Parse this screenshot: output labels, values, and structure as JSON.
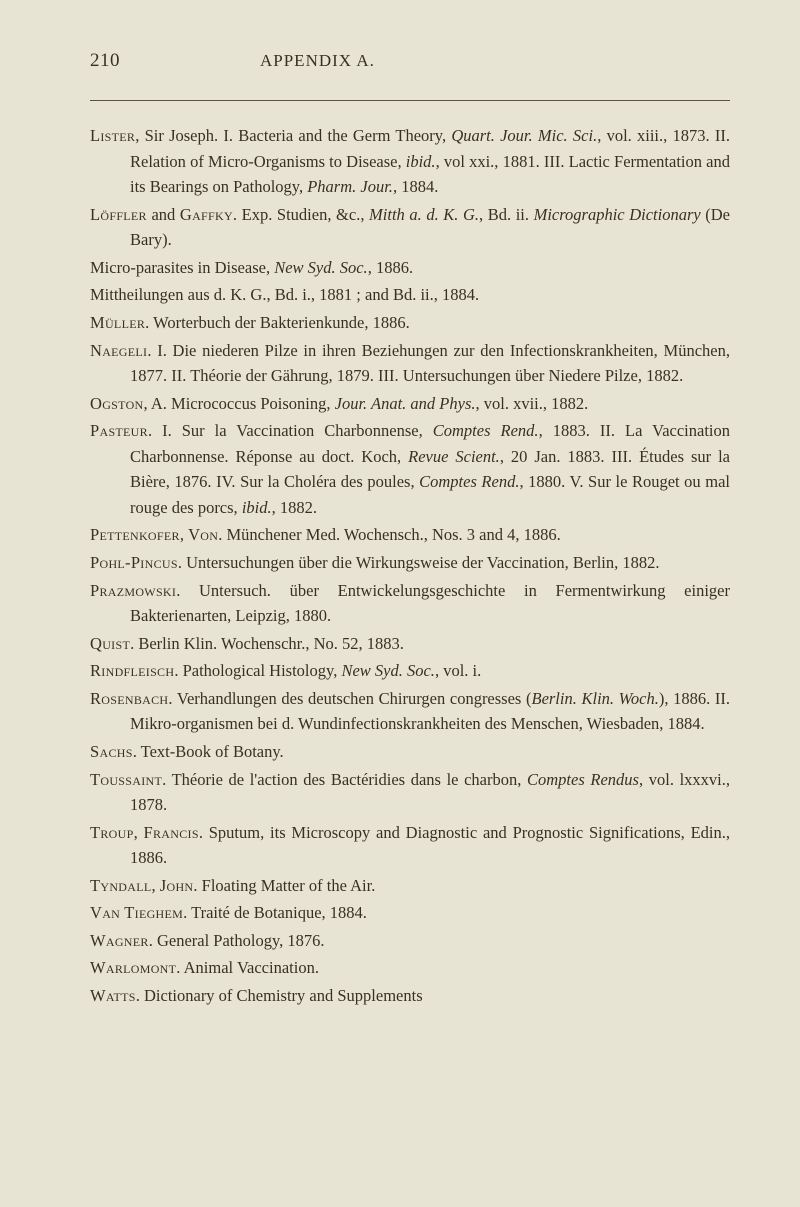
{
  "page_number": "210",
  "header_title": "APPENDIX A.",
  "entries": [
    {
      "author": "Lister",
      "rest": ", Sir Joseph.  I. Bacteria and the Germ Theory, <i>Quart. Jour. Mic. Sci.</i>, vol. xiii., 1873.  II. Relation of Micro-Organisms to Disease, <i>ibid.</i>, vol xxi., 1881.  III. Lactic Fermentation and its Bearings on Pathology, <i>Pharm. Jour.</i>, 1884."
    },
    {
      "author": "Löffler",
      "rest": " and <span class='sc'>Gaffky</span>.  Exp. Studien, &c., <i>Mitth a. d. K. G.</i>, Bd. ii. <i>Micrographic Dictionary</i> (De Bary)."
    },
    {
      "author": "",
      "rest": "Micro-parasites in Disease, <i>New Syd. Soc.</i>, 1886."
    },
    {
      "author": "",
      "rest": "Mittheilungen aus d. K. G., Bd. i., 1881 ; and Bd. ii., 1884."
    },
    {
      "author": "Müller",
      "rest": ".  Worterbuch der Bakterienkunde, 1886."
    },
    {
      "author": "Naegeli",
      "rest": ".  I. Die niederen Pilze in ihren Beziehungen zur den Infectionskrankheiten, München, 1877.  II. Théorie der Gährung, 1879.  III. Untersuchungen über Niedere Pilze, 1882."
    },
    {
      "author": "Ogston",
      "rest": ", A.  Micrococcus Poisoning, <i>Jour. Anat. and Phys.</i>, vol. xvii., 1882."
    },
    {
      "author": "Pasteur",
      "rest": ".  I. Sur la Vaccination Charbonnense, <i>Comptes Rend.</i>, 1883.  II. La Vaccination Charbonnense.  Réponse au doct. Koch, <i>Revue Scient.</i>, 20 Jan. 1883.  III. Études sur la Bière, 1876.  IV. Sur la Choléra des poules, <i>Comptes Rend.</i>, 1880.  V. Sur le Rouget ou mal rouge des porcs, <i>ibid.</i>, 1882."
    },
    {
      "author": "Pettenkofer",
      "rest": ", <span class='sc'>Von</span>.  Münchener Med. Wochensch., Nos. 3 and 4, 1886."
    },
    {
      "author": "Pohl-Pincus",
      "rest": ".  Untersuchungen über die Wirkungsweise der Vaccination, Berlin, 1882."
    },
    {
      "author": "Prazmowski",
      "rest": ".  Untersuch. über Entwickelungsgeschichte in Fermentwirkung einiger Bakterienarten, Leipzig, 1880."
    },
    {
      "author": "Quist",
      "rest": ".  Berlin Klin. Wochenschr., No. 52, 1883."
    },
    {
      "author": "Rindfleisch",
      "rest": ".  Pathological Histology, <i>New Syd. Soc.</i>, vol. i."
    },
    {
      "author": "Rosenbach",
      "rest": ".  Verhandlungen des deutschen Chirurgen congresses (<i>Berlin. Klin. Woch.</i>), 1886.  II. Mikro-organismen bei d. Wundinfectionskrankheiten des Menschen, Wiesbaden, 1884."
    },
    {
      "author": "Sachs",
      "rest": ".  Text-Book of Botany."
    },
    {
      "author": "Toussaint",
      "rest": ".  Théorie de l'action des Bactéridies dans le charbon, <i>Comptes Rendus</i>, vol. lxxxvi., 1878."
    },
    {
      "author": "Troup",
      "rest": ", <span class='sc'>Francis</span>.  Sputum, its Microscopy and Diagnostic and Prognostic Significations, Edin., 1886."
    },
    {
      "author": "Tyndall",
      "rest": ", <span class='sc'>John</span>.  Floating Matter of the Air."
    },
    {
      "author": "Van Tieghem",
      "rest": ".  Traité de Botanique, 1884."
    },
    {
      "author": "Wagner",
      "rest": ".  General Pathology, 1876."
    },
    {
      "author": "Warlomont",
      "rest": ".  Animal Vaccination."
    },
    {
      "author": "Watts",
      "rest": ".  Dictionary of Chemistry and Supplements"
    }
  ]
}
